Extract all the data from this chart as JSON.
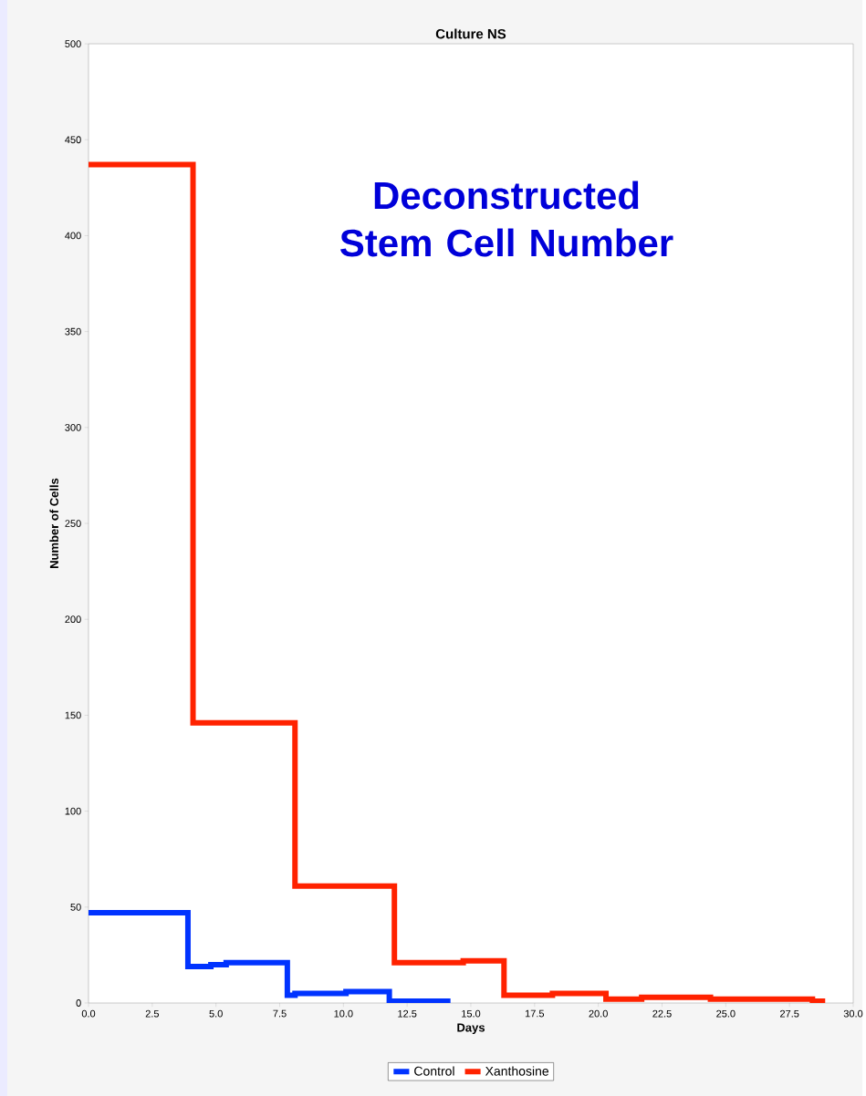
{
  "chart_data": {
    "type": "step",
    "title": "Culture NS",
    "xlabel": "Days",
    "ylabel": "Number of Cells",
    "annotations": [
      "Deconstructed Stem Cell Number"
    ],
    "series": [
      {
        "name": "Control",
        "color": "#0033ff",
        "x": [
          0,
          3.9,
          4.8,
          5.4,
          7.8,
          8.1,
          10.1,
          11.8,
          14.2
        ],
        "values": [
          47,
          19,
          20,
          21,
          4,
          5,
          6,
          1,
          1
        ]
      },
      {
        "name": "Xanthosine",
        "color": "#ff2200",
        "x": [
          0,
          4.1,
          8.1,
          12.0,
          14.7,
          16.3,
          18.2,
          20.3,
          21.7,
          24.4,
          28.4,
          28.9
        ],
        "values": [
          437,
          146,
          61,
          21,
          22,
          4,
          5,
          2,
          3,
          2,
          1,
          1
        ]
      }
    ],
    "xlim": [
      0,
      30
    ],
    "ylim": [
      0,
      500
    ],
    "xticks": [
      {
        "value": 0,
        "label": "0.0"
      },
      {
        "value": 2.5,
        "label": "2.5"
      },
      {
        "value": 5,
        "label": "5.0"
      },
      {
        "value": 7.5,
        "label": "7.5"
      },
      {
        "value": 10,
        "label": "10.0"
      },
      {
        "value": 12.5,
        "label": "12.5"
      },
      {
        "value": 15,
        "label": "15.0"
      },
      {
        "value": 17.5,
        "label": "17.5"
      },
      {
        "value": 20,
        "label": "20.0"
      },
      {
        "value": 22.5,
        "label": "22.5"
      },
      {
        "value": 25,
        "label": "25.0"
      },
      {
        "value": 27.5,
        "label": "27.5"
      },
      {
        "value": 30,
        "label": "30.0"
      }
    ],
    "yticks": [
      0,
      50,
      100,
      150,
      200,
      250,
      300,
      350,
      400,
      450,
      500
    ],
    "grid": false,
    "legend": "bottom"
  }
}
